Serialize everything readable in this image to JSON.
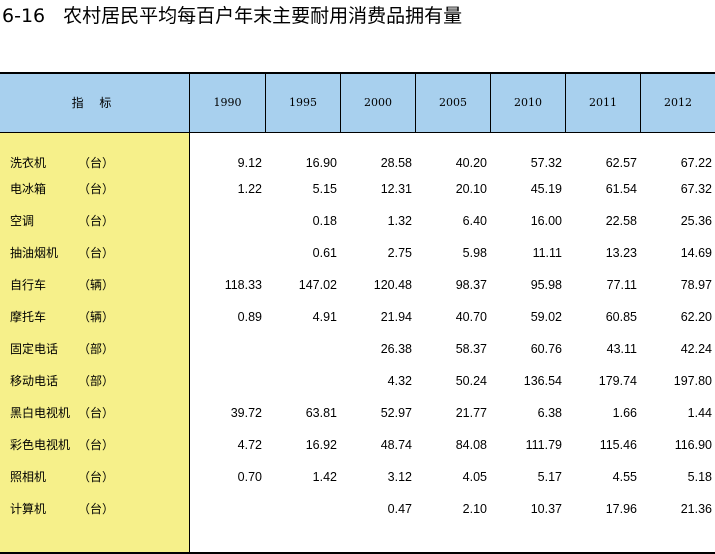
{
  "title": {
    "number": "6-16",
    "text": "农村居民平均每百户年末主要耐用消费品拥有量"
  },
  "table": {
    "header_label": "指 标",
    "years": [
      "1990",
      "1995",
      "2000",
      "2005",
      "2010",
      "2011",
      "2012"
    ],
    "rows": [
      {
        "name": "洗衣机",
        "unit": "（台）",
        "values": [
          "9.12",
          "16.90",
          "28.58",
          "40.20",
          "57.32",
          "62.57",
          "67.22"
        ]
      },
      {
        "name": "电冰箱",
        "unit": "（台）",
        "values": [
          "1.22",
          "5.15",
          "12.31",
          "20.10",
          "45.19",
          "61.54",
          "67.32"
        ]
      },
      {
        "name": "空调",
        "unit": "（台）",
        "values": [
          "",
          "0.18",
          "1.32",
          "6.40",
          "16.00",
          "22.58",
          "25.36"
        ]
      },
      {
        "name": "抽油烟机",
        "unit": "（台）",
        "values": [
          "",
          "0.61",
          "2.75",
          "5.98",
          "11.11",
          "13.23",
          "14.69"
        ]
      },
      {
        "name": "自行车",
        "unit": "（辆）",
        "values": [
          "118.33",
          "147.02",
          "120.48",
          "98.37",
          "95.98",
          "77.11",
          "78.97"
        ]
      },
      {
        "name": "摩托车",
        "unit": "（辆）",
        "values": [
          "0.89",
          "4.91",
          "21.94",
          "40.70",
          "59.02",
          "60.85",
          "62.20"
        ]
      },
      {
        "name": "固定电话",
        "unit": "（部）",
        "values": [
          "",
          "",
          "26.38",
          "58.37",
          "60.76",
          "43.11",
          "42.24"
        ]
      },
      {
        "name": "移动电话",
        "unit": "（部）",
        "values": [
          "",
          "",
          "4.32",
          "50.24",
          "136.54",
          "179.74",
          "197.80"
        ]
      },
      {
        "name": "黑白电视机",
        "unit": "（台）",
        "values": [
          "39.72",
          "63.81",
          "52.97",
          "21.77",
          "6.38",
          "1.66",
          "1.44"
        ]
      },
      {
        "name": "彩色电视机",
        "unit": "（台）",
        "values": [
          "4.72",
          "16.92",
          "48.74",
          "84.08",
          "111.79",
          "115.46",
          "116.90"
        ]
      },
      {
        "name": "照相机",
        "unit": "（台）",
        "values": [
          "0.70",
          "1.42",
          "3.12",
          "4.05",
          "5.17",
          "4.55",
          "5.18"
        ]
      },
      {
        "name": "计算机",
        "unit": "（台）",
        "values": [
          "",
          "",
          "0.47",
          "2.10",
          "10.37",
          "17.96",
          "21.36"
        ]
      }
    ]
  },
  "colors": {
    "header_bg": "#a8d0ee",
    "label_col_bg": "#f6f08a"
  }
}
